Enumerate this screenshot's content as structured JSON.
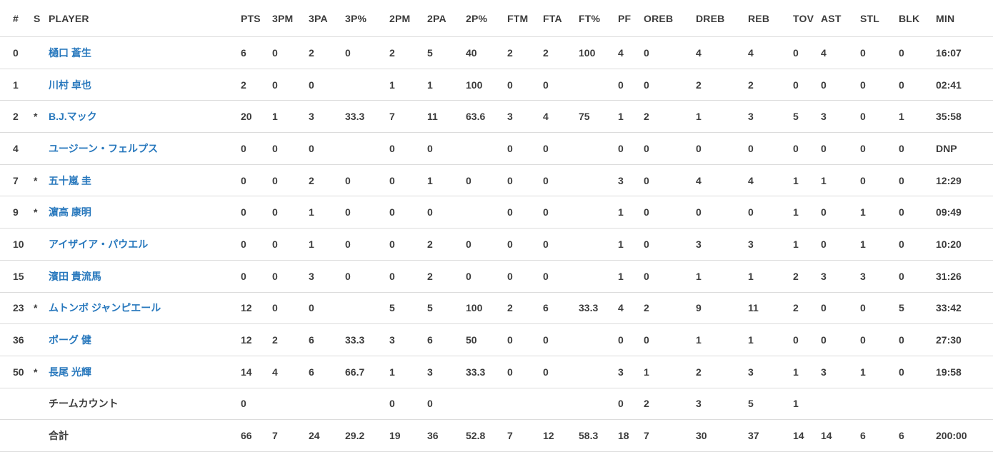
{
  "colors": {
    "player_link": "#2878bd",
    "text": "#3c3c3c",
    "row_border": "#dcdcdc",
    "background": "#ffffff"
  },
  "table": {
    "columns": [
      "#",
      "S",
      "PLAYER",
      "PTS",
      "3PM",
      "3PA",
      "3P%",
      "2PM",
      "2PA",
      "2P%",
      "FTM",
      "FTA",
      "FT%",
      "PF",
      "OREB",
      "DREB",
      "REB",
      "TOV",
      "AST",
      "STL",
      "BLK",
      "MIN"
    ],
    "rows": [
      {
        "player_link": true,
        "cells": [
          "0",
          "",
          "樋口 蒼生",
          "6",
          "0",
          "2",
          "0",
          "2",
          "5",
          "40",
          "2",
          "2",
          "100",
          "4",
          "0",
          "4",
          "4",
          "0",
          "4",
          "0",
          "0",
          "16:07"
        ]
      },
      {
        "player_link": true,
        "cells": [
          "1",
          "",
          "川村 卓也",
          "2",
          "0",
          "0",
          "",
          "1",
          "1",
          "100",
          "0",
          "0",
          "",
          "0",
          "0",
          "2",
          "2",
          "0",
          "0",
          "0",
          "0",
          "02:41"
        ]
      },
      {
        "player_link": true,
        "cells": [
          "2",
          "*",
          "B.J.マック",
          "20",
          "1",
          "3",
          "33.3",
          "7",
          "11",
          "63.6",
          "3",
          "4",
          "75",
          "1",
          "2",
          "1",
          "3",
          "5",
          "3",
          "0",
          "1",
          "35:58"
        ]
      },
      {
        "player_link": true,
        "cells": [
          "4",
          "",
          "ユージーン・フェルプス",
          "0",
          "0",
          "0",
          "",
          "0",
          "0",
          "",
          "0",
          "0",
          "",
          "0",
          "0",
          "0",
          "0",
          "0",
          "0",
          "0",
          "0",
          "DNP"
        ]
      },
      {
        "player_link": true,
        "cells": [
          "7",
          "*",
          "五十嵐 圭",
          "0",
          "0",
          "2",
          "0",
          "0",
          "1",
          "0",
          "0",
          "0",
          "",
          "3",
          "0",
          "4",
          "4",
          "1",
          "1",
          "0",
          "0",
          "12:29"
        ]
      },
      {
        "player_link": true,
        "cells": [
          "9",
          "*",
          "濵高 康明",
          "0",
          "0",
          "1",
          "0",
          "0",
          "0",
          "",
          "0",
          "0",
          "",
          "1",
          "0",
          "0",
          "0",
          "1",
          "0",
          "1",
          "0",
          "09:49"
        ]
      },
      {
        "player_link": true,
        "cells": [
          "10",
          "",
          "アイザイア・パウエル",
          "0",
          "0",
          "1",
          "0",
          "0",
          "2",
          "0",
          "0",
          "0",
          "",
          "1",
          "0",
          "3",
          "3",
          "1",
          "0",
          "1",
          "0",
          "10:20"
        ]
      },
      {
        "player_link": true,
        "cells": [
          "15",
          "",
          "濱田 貴流馬",
          "0",
          "0",
          "3",
          "0",
          "0",
          "2",
          "0",
          "0",
          "0",
          "",
          "1",
          "0",
          "1",
          "1",
          "2",
          "3",
          "3",
          "0",
          "31:26"
        ]
      },
      {
        "player_link": true,
        "cells": [
          "23",
          "*",
          "ムトンボ ジャンピエール",
          "12",
          "0",
          "0",
          "",
          "5",
          "5",
          "100",
          "2",
          "6",
          "33.3",
          "4",
          "2",
          "9",
          "11",
          "2",
          "0",
          "0",
          "5",
          "33:42"
        ]
      },
      {
        "player_link": true,
        "cells": [
          "36",
          "",
          "ポーグ 健",
          "12",
          "2",
          "6",
          "33.3",
          "3",
          "6",
          "50",
          "0",
          "0",
          "",
          "0",
          "0",
          "1",
          "1",
          "0",
          "0",
          "0",
          "0",
          "27:30"
        ]
      },
      {
        "player_link": true,
        "cells": [
          "50",
          "*",
          "長尾 光輝",
          "14",
          "4",
          "6",
          "66.7",
          "1",
          "3",
          "33.3",
          "0",
          "0",
          "",
          "3",
          "1",
          "2",
          "3",
          "1",
          "3",
          "1",
          "0",
          "19:58"
        ]
      },
      {
        "player_link": false,
        "cells": [
          "",
          "",
          "チームカウント",
          "0",
          "",
          "",
          "",
          "0",
          "0",
          "",
          "",
          "",
          "",
          "0",
          "2",
          "3",
          "5",
          "1",
          "",
          "",
          "",
          ""
        ]
      },
      {
        "player_link": false,
        "cells": [
          "",
          "",
          "合計",
          "66",
          "7",
          "24",
          "29.2",
          "19",
          "36",
          "52.8",
          "7",
          "12",
          "58.3",
          "18",
          "7",
          "30",
          "37",
          "14",
          "14",
          "6",
          "6",
          "200:00"
        ]
      }
    ]
  }
}
